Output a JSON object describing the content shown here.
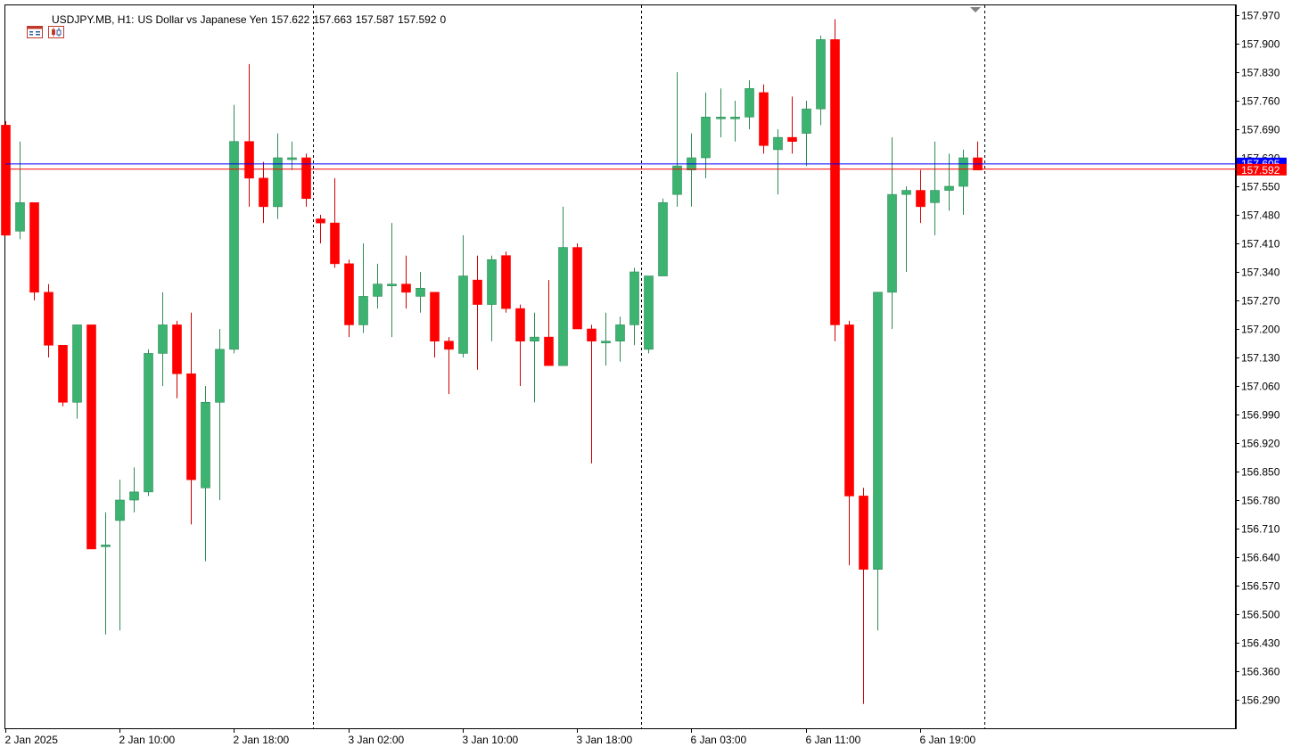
{
  "header": {
    "symbol": "USDJPY.MB, H1:",
    "description": "US Dollar vs Japanese Yen",
    "open": "157.622",
    "high": "157.663",
    "low": "157.587",
    "close": "157.592",
    "volume": "0"
  },
  "colors": {
    "bull": "#3cb371",
    "bear": "#ff0000",
    "wick_bull": "#2e8b57",
    "wick_bear": "#cc0000",
    "bid_line": "#ff0000",
    "ask_line": "#0000ff",
    "grid": "#000000"
  },
  "price_labels": {
    "bid": "157.592",
    "ask": "157.605"
  },
  "chart_data": {
    "type": "candlestick",
    "symbol": "USDJPY.MB",
    "timeframe": "H1",
    "y_ticks": [
      "157.970",
      "157.900",
      "157.830",
      "157.760",
      "157.690",
      "157.620",
      "157.550",
      "157.480",
      "157.410",
      "157.340",
      "157.270",
      "157.200",
      "157.130",
      "157.060",
      "156.990",
      "156.920",
      "156.850",
      "156.780",
      "156.710",
      "156.640",
      "156.570",
      "156.500",
      "156.430",
      "156.360",
      "156.290"
    ],
    "ylim": [
      156.24,
      157.99
    ],
    "x_ticks": [
      {
        "label": "2 Jan 2025",
        "index": 0
      },
      {
        "label": "2 Jan 10:00",
        "index": 8
      },
      {
        "label": "2 Jan 18:00",
        "index": 16
      },
      {
        "label": "3 Jan 02:00",
        "index": 24
      },
      {
        "label": "3 Jan 10:00",
        "index": 32
      },
      {
        "label": "3 Jan 18:00",
        "index": 40
      },
      {
        "label": "6 Jan 03:00",
        "index": 48
      },
      {
        "label": "6 Jan 11:00",
        "index": 56
      },
      {
        "label": "6 Jan 19:00",
        "index": 64
      }
    ],
    "day_separators": [
      22,
      45,
      69
    ],
    "candles": [
      [
        157.7,
        157.71,
        157.43,
        157.43
      ],
      [
        157.44,
        157.66,
        157.42,
        157.51
      ],
      [
        157.51,
        157.51,
        157.27,
        157.29
      ],
      [
        157.29,
        157.31,
        157.13,
        157.16
      ],
      [
        157.16,
        157.16,
        157.01,
        157.02
      ],
      [
        157.02,
        157.21,
        156.98,
        157.21
      ],
      [
        157.21,
        157.21,
        156.66,
        156.66
      ],
      [
        156.67,
        156.75,
        156.45,
        156.67
      ],
      [
        156.73,
        156.83,
        156.46,
        156.78
      ],
      [
        156.78,
        156.86,
        156.75,
        156.8
      ],
      [
        156.8,
        157.15,
        156.79,
        157.14
      ],
      [
        157.14,
        157.29,
        157.06,
        157.21
      ],
      [
        157.21,
        157.22,
        157.03,
        157.09
      ],
      [
        157.09,
        157.24,
        156.72,
        156.83
      ],
      [
        156.81,
        157.06,
        156.63,
        157.02
      ],
      [
        157.02,
        157.2,
        156.78,
        157.15
      ],
      [
        157.15,
        157.75,
        157.14,
        157.66
      ],
      [
        157.66,
        157.85,
        157.5,
        157.57
      ],
      [
        157.57,
        157.61,
        157.46,
        157.5
      ],
      [
        157.5,
        157.68,
        157.47,
        157.62
      ],
      [
        157.62,
        157.66,
        157.59,
        157.62
      ],
      [
        157.62,
        157.63,
        157.5,
        157.52
      ],
      [
        157.47,
        157.48,
        157.41,
        157.46
      ],
      [
        157.46,
        157.57,
        157.35,
        157.36
      ],
      [
        157.36,
        157.37,
        157.18,
        157.21
      ],
      [
        157.21,
        157.41,
        157.19,
        157.28
      ],
      [
        157.28,
        157.36,
        157.25,
        157.31
      ],
      [
        157.31,
        157.46,
        157.18,
        157.31
      ],
      [
        157.31,
        157.38,
        157.25,
        157.29
      ],
      [
        157.28,
        157.34,
        157.24,
        157.3
      ],
      [
        157.29,
        157.29,
        157.13,
        157.17
      ],
      [
        157.17,
        157.18,
        157.04,
        157.15
      ],
      [
        157.14,
        157.43,
        157.13,
        157.33
      ],
      [
        157.32,
        157.38,
        157.1,
        157.26
      ],
      [
        157.26,
        157.38,
        157.17,
        157.37
      ],
      [
        157.38,
        157.39,
        157.24,
        157.25
      ],
      [
        157.25,
        157.26,
        157.06,
        157.17
      ],
      [
        157.17,
        157.24,
        157.02,
        157.18
      ],
      [
        157.18,
        157.32,
        157.11,
        157.11
      ],
      [
        157.11,
        157.5,
        157.11,
        157.4
      ],
      [
        157.4,
        157.41,
        157.2,
        157.2
      ],
      [
        157.2,
        157.21,
        156.87,
        157.17
      ],
      [
        157.17,
        157.24,
        157.11,
        157.17
      ],
      [
        157.17,
        157.23,
        157.12,
        157.21
      ],
      [
        157.21,
        157.35,
        157.16,
        157.34
      ],
      [
        157.15,
        157.33,
        157.14,
        157.33
      ],
      [
        157.33,
        157.52,
        157.33,
        157.51
      ],
      [
        157.53,
        157.83,
        157.5,
        157.6
      ],
      [
        157.59,
        157.68,
        157.5,
        157.62
      ],
      [
        157.62,
        157.78,
        157.57,
        157.72
      ],
      [
        157.72,
        157.79,
        157.67,
        157.72
      ],
      [
        157.72,
        157.76,
        157.66,
        157.72
      ],
      [
        157.72,
        157.81,
        157.69,
        157.79
      ],
      [
        157.78,
        157.8,
        157.63,
        157.65
      ],
      [
        157.64,
        157.69,
        157.53,
        157.67
      ],
      [
        157.67,
        157.77,
        157.63,
        157.66
      ],
      [
        157.68,
        157.76,
        157.6,
        157.74
      ],
      [
        157.74,
        157.92,
        157.7,
        157.91
      ],
      [
        157.91,
        157.96,
        157.17,
        157.21
      ],
      [
        157.21,
        157.22,
        156.62,
        156.79
      ],
      [
        156.79,
        156.81,
        156.28,
        156.61
      ],
      [
        156.61,
        157.29,
        156.46,
        157.29
      ],
      [
        157.29,
        157.67,
        157.2,
        157.53
      ],
      [
        157.53,
        157.55,
        157.34,
        157.54
      ],
      [
        157.54,
        157.59,
        157.46,
        157.5
      ],
      [
        157.51,
        157.66,
        157.43,
        157.54
      ],
      [
        157.54,
        157.63,
        157.49,
        157.55
      ],
      [
        157.55,
        157.64,
        157.48,
        157.62
      ],
      [
        157.62,
        157.66,
        157.59,
        157.59
      ]
    ]
  }
}
